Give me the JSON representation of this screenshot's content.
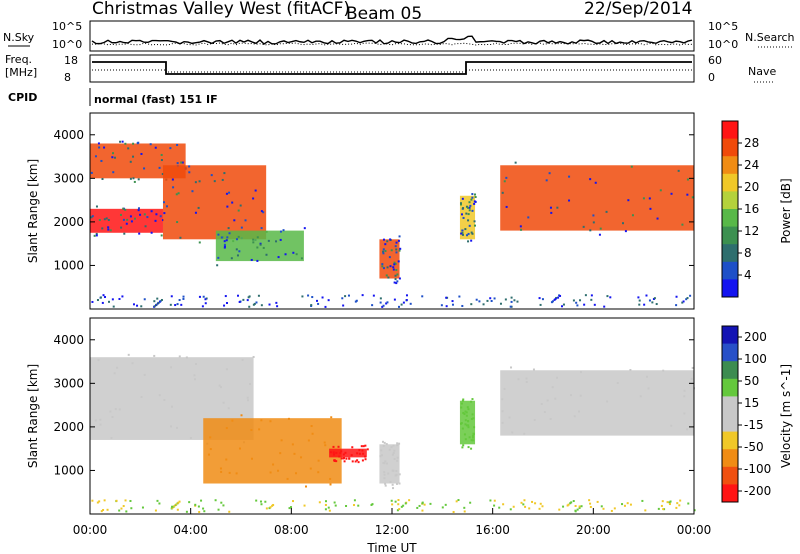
{
  "header": {
    "radar": "Christmas Valley West (fitACF)",
    "beam": "Beam 05",
    "date": "22/Sep/2014"
  },
  "strip": {
    "nsky_label": "N.Sky",
    "nsky_ticks": [
      "10^5",
      "10^0"
    ],
    "nsearch_label": "N.Search",
    "nsearch_ticks": [
      "10^5",
      "10^0"
    ],
    "freq_label": "Freq.",
    "freq_unit": "[MHz]",
    "freq_ticks": [
      "18",
      "8"
    ],
    "nave_label": "Nave",
    "nave_ticks": [
      "60",
      "0"
    ],
    "cpid_label": "CPID",
    "cpid_value": "normal (fast) 151 IF"
  },
  "colors": {
    "power_scale": [
      "#1414f0",
      "#1e50c8",
      "#2e6e6e",
      "#3c9050",
      "#58b848",
      "#b4d23c",
      "#f0c828",
      "#f08c14",
      "#f04a0a",
      "#ff1414"
    ],
    "velocity_scale": [
      "#1414b4",
      "#2850c8",
      "#3c8c50",
      "#64c83c",
      "#c8c8c8",
      "#c8c8c8",
      "#f0c828",
      "#f08c14",
      "#f05010",
      "#ff1414"
    ]
  },
  "chart_data": [
    {
      "type": "heatmap",
      "panel": "power",
      "ylabel": "Slant Range [km]",
      "yticks": [
        "1000",
        "2000",
        "3000",
        "4000"
      ],
      "ylim": [
        0,
        4500
      ],
      "colorbar_label": "Power [dB]",
      "colorbar_ticks": [
        "4",
        "8",
        "12",
        "16",
        "20",
        "24",
        "28"
      ],
      "features": [
        {
          "t": [
            0.0,
            2.9
          ],
          "r": [
            1750,
            2300
          ],
          "level": 27
        },
        {
          "t": [
            0.0,
            3.8
          ],
          "r": [
            3000,
            3800
          ],
          "level": 26
        },
        {
          "t": [
            2.9,
            7.0
          ],
          "r": [
            1600,
            3300
          ],
          "level": 24
        },
        {
          "t": [
            5.0,
            8.5
          ],
          "r": [
            1100,
            1800
          ],
          "level": 14
        },
        {
          "t": [
            11.5,
            12.3
          ],
          "r": [
            700,
            1600
          ],
          "level": 24
        },
        {
          "t": [
            14.7,
            15.3
          ],
          "r": [
            1600,
            2600
          ],
          "level": 18
        },
        {
          "t": [
            16.3,
            24.0
          ],
          "r": [
            1800,
            3300
          ],
          "level": 26
        }
      ]
    },
    {
      "type": "heatmap",
      "panel": "velocity",
      "ylabel": "Slant Range [km]",
      "yticks": [
        "1000",
        "2000",
        "3000",
        "4000"
      ],
      "ylim": [
        0,
        4500
      ],
      "xlabel": "Time UT",
      "xticks": [
        "00:00",
        "04:00",
        "08:00",
        "12:00",
        "16:00",
        "20:00",
        "00:00"
      ],
      "colorbar_label": "Velocity [m s^-1]",
      "colorbar_ticks": [
        "200",
        "100",
        "50",
        "15",
        "-15",
        "-50",
        "-100",
        "-200"
      ],
      "features": [
        {
          "t": [
            0.0,
            6.5
          ],
          "r": [
            1700,
            3600
          ],
          "velocity": 0
        },
        {
          "t": [
            4.5,
            10.0
          ],
          "r": [
            700,
            2200
          ],
          "velocity": -80
        },
        {
          "t": [
            9.5,
            11.0
          ],
          "r": [
            1300,
            1500
          ],
          "velocity": -220
        },
        {
          "t": [
            11.5,
            12.3
          ],
          "r": [
            700,
            1600
          ],
          "velocity": 0
        },
        {
          "t": [
            14.7,
            15.3
          ],
          "r": [
            1600,
            2600
          ],
          "velocity": 40
        },
        {
          "t": [
            16.3,
            24.0
          ],
          "r": [
            1800,
            3300
          ],
          "velocity": 0
        }
      ]
    }
  ]
}
